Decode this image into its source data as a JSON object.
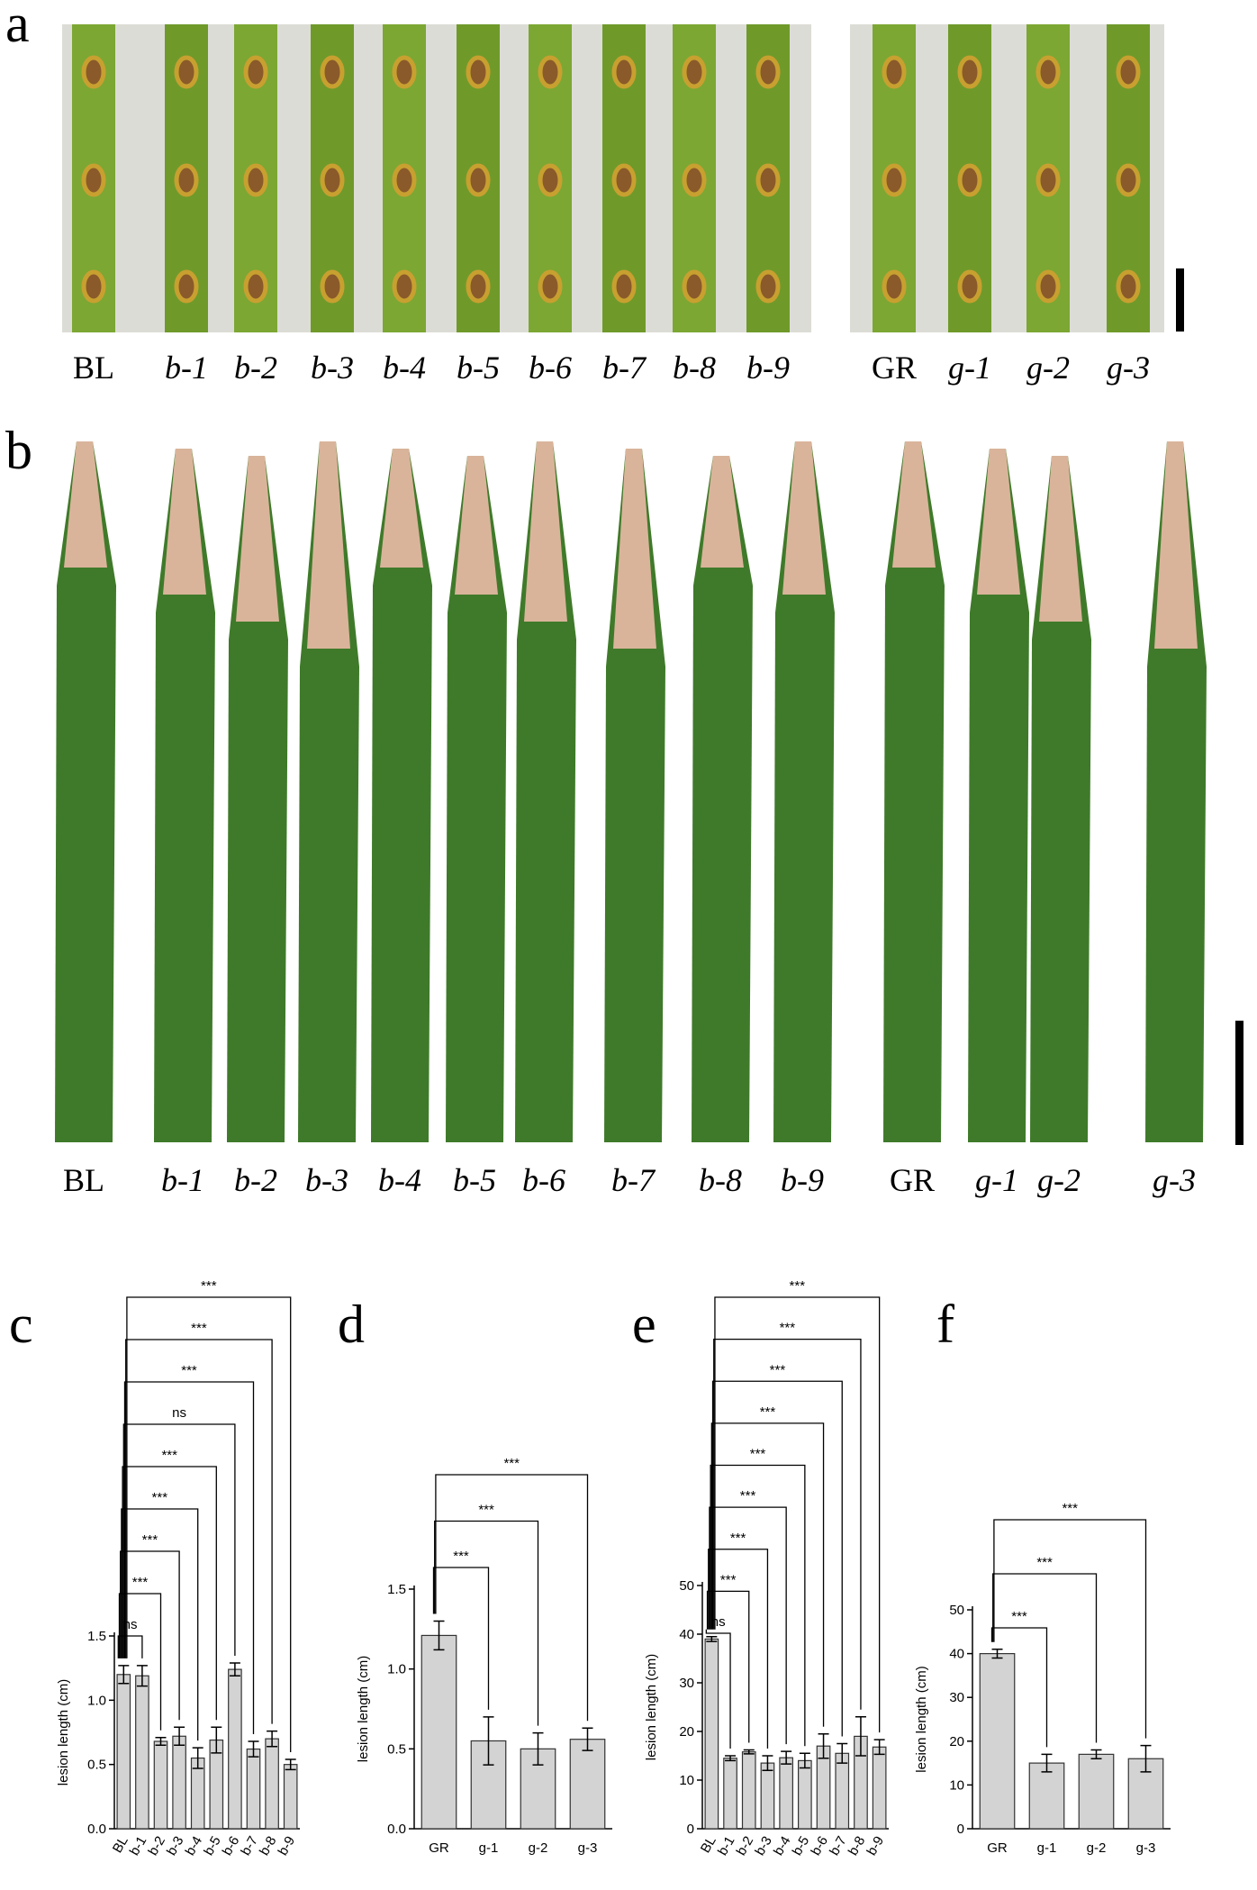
{
  "panels": {
    "a": {
      "label": "a",
      "groups": [
        [
          "BL",
          "b-1",
          "b-2",
          "b-3",
          "b-4",
          "b-5",
          "b-6",
          "b-7",
          "b-8",
          "b-9"
        ],
        [
          "GR",
          "g-1",
          "g-2",
          "g-3"
        ]
      ]
    },
    "b": {
      "label": "b",
      "groups": [
        [
          "BL",
          "b-1",
          "b-2",
          "b-3",
          "b-4",
          "b-5",
          "b-6",
          "b-7",
          "b-8",
          "b-9"
        ],
        [
          "GR",
          "g-1",
          "g-2",
          "g-3"
        ]
      ]
    }
  },
  "chart_data": [
    {
      "type": "bar",
      "panel_label": "c",
      "y_label": "lesion length (cm)",
      "categories": [
        "BL",
        "b-1",
        "b-2",
        "b-3",
        "b-4",
        "b-5",
        "b-6",
        "b-7",
        "b-8",
        "b-9"
      ],
      "values": [
        1.2,
        1.19,
        0.68,
        0.72,
        0.55,
        0.69,
        1.24,
        0.62,
        0.7,
        0.5
      ],
      "errors": [
        0.07,
        0.08,
        0.03,
        0.07,
        0.08,
        0.1,
        0.05,
        0.06,
        0.06,
        0.04
      ],
      "color": "#d3d3d3",
      "ylim": [
        0,
        1.5
      ],
      "yticks": [
        {
          "value": 0,
          "label": "0.0"
        },
        {
          "value": 0.5,
          "label": "0.5"
        },
        {
          "value": 1,
          "label": "1.0"
        },
        {
          "value": 1.5,
          "label": "1.5"
        }
      ],
      "comparisons": [
        {
          "category": "b-1",
          "label": "ns"
        },
        {
          "category": "b-2",
          "label": "***"
        },
        {
          "category": "b-3",
          "label": "***"
        },
        {
          "category": "b-4",
          "label": "***"
        },
        {
          "category": "b-5",
          "label": "***"
        },
        {
          "category": "b-6",
          "label": "ns"
        },
        {
          "category": "b-7",
          "label": "***"
        },
        {
          "category": "b-8",
          "label": "***"
        },
        {
          "category": "b-9",
          "label": "***"
        }
      ]
    },
    {
      "type": "bar",
      "panel_label": "d",
      "y_label": "lesion length (cm)",
      "categories": [
        "GR",
        "g-1",
        "g-2",
        "g-3"
      ],
      "values": [
        1.21,
        0.55,
        0.5,
        0.56
      ],
      "errors": [
        0.09,
        0.15,
        0.1,
        0.07
      ],
      "color": "#d3d3d3",
      "ylim": [
        0,
        1.5
      ],
      "yticks": [
        {
          "value": 0,
          "label": "0.0"
        },
        {
          "value": 0.5,
          "label": "0.5"
        },
        {
          "value": 1,
          "label": "1.0"
        },
        {
          "value": 1.5,
          "label": "1.5"
        }
      ],
      "comparisons": [
        {
          "category": "g-1",
          "label": "***"
        },
        {
          "category": "g-2",
          "label": "***"
        },
        {
          "category": "g-3",
          "label": "***"
        }
      ]
    },
    {
      "type": "bar",
      "panel_label": "e",
      "y_label": "lesion length (cm)",
      "categories": [
        "BL",
        "b-1",
        "b-2",
        "b-3",
        "b-4",
        "b-5",
        "b-6",
        "b-7",
        "b-8",
        "b-9"
      ],
      "values": [
        39,
        14.5,
        15.8,
        13.5,
        14.6,
        14,
        17,
        15.5,
        19,
        16.8
      ],
      "errors": [
        0.5,
        0.5,
        0.4,
        1.5,
        1.3,
        1.5,
        2.5,
        2,
        4,
        1.5
      ],
      "color": "#d3d3d3",
      "ylim": [
        0,
        50
      ],
      "yticks": [
        0,
        10,
        20,
        30,
        40,
        50
      ],
      "comparisons": [
        {
          "category": "b-1",
          "label": "ns"
        },
        {
          "category": "b-2",
          "label": "***"
        },
        {
          "category": "b-3",
          "label": "***"
        },
        {
          "category": "b-4",
          "label": "***"
        },
        {
          "category": "b-5",
          "label": "***"
        },
        {
          "category": "b-6",
          "label": "***"
        },
        {
          "category": "b-7",
          "label": "***"
        },
        {
          "category": "b-8",
          "label": "***"
        },
        {
          "category": "b-9",
          "label": "***"
        }
      ]
    },
    {
      "type": "bar",
      "panel_label": "f",
      "y_label": "lesion length (cm)",
      "categories": [
        "GR",
        "g-1",
        "g-2",
        "g-3"
      ],
      "values": [
        40,
        15,
        17,
        16
      ],
      "errors": [
        1,
        2,
        1,
        3
      ],
      "color": "#d3d3d3",
      "ylim": [
        0,
        50
      ],
      "yticks": [
        0,
        10,
        20,
        30,
        40,
        50
      ],
      "comparisons": [
        {
          "category": "g-1",
          "label": "***"
        },
        {
          "category": "g-2",
          "label": "***"
        },
        {
          "category": "g-3",
          "label": "***"
        }
      ]
    }
  ]
}
